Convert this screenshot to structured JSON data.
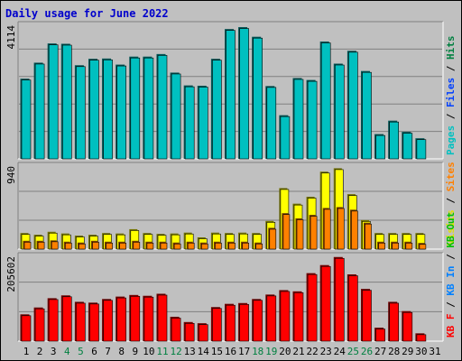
{
  "title": "Daily usage for June 2022",
  "chart_data": [
    {
      "type": "bar",
      "panel": "pages-files-hits",
      "ymax_label": "4114",
      "ymax": 4114,
      "legend": [
        {
          "name": "Pages",
          "color": "#00c0c0"
        },
        {
          "name": "Files",
          "color": "#0040ff"
        },
        {
          "name": "Hits",
          "color": "#008040"
        }
      ],
      "categories": [
        "1",
        "2",
        "3",
        "4",
        "5",
        "6",
        "7",
        "8",
        "9",
        "10",
        "11",
        "12",
        "13",
        "14",
        "15",
        "16",
        "17",
        "18",
        "19",
        "20",
        "21",
        "22",
        "23",
        "24",
        "25",
        "26",
        "27",
        "28",
        "29",
        "30",
        "31"
      ],
      "series": [
        {
          "name": "Hits",
          "color": "#00c0c0",
          "values": [
            2460,
            2960,
            3560,
            3550,
            2880,
            3080,
            3090,
            2900,
            3150,
            3150,
            3230,
            2650,
            2250,
            2240,
            3080,
            4010,
            4070,
            3770,
            2230,
            1320,
            2480,
            2420,
            3620,
            2930,
            3330,
            2700,
            730,
            1150,
            800,
            600,
            0
          ]
        }
      ]
    },
    {
      "type": "bar",
      "panel": "visits-sites",
      "ymax_label": "940",
      "ymax": 940,
      "legend": [
        {
          "name": "Visits",
          "color": "#e0e000"
        },
        {
          "name": "Sites",
          "color": "#ff8000"
        }
      ],
      "categories": [
        "1",
        "2",
        "3",
        "4",
        "5",
        "6",
        "7",
        "8",
        "9",
        "10",
        "11",
        "12",
        "13",
        "14",
        "15",
        "16",
        "17",
        "18",
        "19",
        "20",
        "21",
        "22",
        "23",
        "24",
        "25",
        "26",
        "27",
        "28",
        "29",
        "30",
        "31"
      ],
      "series": [
        {
          "name": "Visits",
          "color": "#ffff00",
          "values": [
            170,
            150,
            185,
            165,
            140,
            150,
            170,
            165,
            215,
            170,
            160,
            165,
            175,
            120,
            175,
            170,
            175,
            170,
            310,
            690,
            510,
            590,
            880,
            920,
            620,
            320,
            170,
            170,
            170,
            170,
            0
          ]
        },
        {
          "name": "Sites",
          "color": "#ff8000",
          "values": [
            80,
            80,
            85,
            70,
            60,
            80,
            70,
            70,
            80,
            70,
            70,
            60,
            70,
            60,
            70,
            70,
            70,
            60,
            230,
            400,
            340,
            380,
            460,
            470,
            440,
            290,
            70,
            70,
            70,
            55,
            0
          ]
        }
      ]
    },
    {
      "type": "bar",
      "panel": "kbytes",
      "ymax_label": "205602",
      "ymax": 205602,
      "legend": [
        {
          "name": "KB F",
          "color": "#ff0000"
        },
        {
          "name": "KB In",
          "color": "#0080ff"
        },
        {
          "name": "KB Out",
          "color": "#00c000"
        }
      ],
      "categories": [
        "1",
        "2",
        "3",
        "4",
        "5",
        "6",
        "7",
        "8",
        "9",
        "10",
        "11",
        "12",
        "13",
        "14",
        "15",
        "16",
        "17",
        "18",
        "19",
        "20",
        "21",
        "22",
        "23",
        "24",
        "25",
        "26",
        "27",
        "28",
        "29",
        "30",
        "31"
      ],
      "series": [
        {
          "name": "KB F",
          "color": "#ff0000",
          "values": [
            63000,
            80000,
            103000,
            110000,
            94000,
            92000,
            101000,
            107000,
            111000,
            109000,
            114000,
            57000,
            44000,
            41000,
            81000,
            89000,
            91000,
            101000,
            112000,
            123000,
            120000,
            165000,
            185000,
            205000,
            162000,
            126000,
            30000,
            94000,
            71000,
            16000,
            0
          ]
        }
      ]
    }
  ],
  "x_labels": [
    {
      "text": "1",
      "color": "#000000"
    },
    {
      "text": "2",
      "color": "#000000"
    },
    {
      "text": "3",
      "color": "#000000"
    },
    {
      "text": "4",
      "color": "#008040"
    },
    {
      "text": "5",
      "color": "#008040"
    },
    {
      "text": "6",
      "color": "#000000"
    },
    {
      "text": "7",
      "color": "#000000"
    },
    {
      "text": "8",
      "color": "#000000"
    },
    {
      "text": "9",
      "color": "#000000"
    },
    {
      "text": "10",
      "color": "#000000"
    },
    {
      "text": "11",
      "color": "#008040"
    },
    {
      "text": "12",
      "color": "#008040"
    },
    {
      "text": "13",
      "color": "#000000"
    },
    {
      "text": "14",
      "color": "#000000"
    },
    {
      "text": "15",
      "color": "#000000"
    },
    {
      "text": "16",
      "color": "#000000"
    },
    {
      "text": "17",
      "color": "#000000"
    },
    {
      "text": "18",
      "color": "#008040"
    },
    {
      "text": "19",
      "color": "#008040"
    },
    {
      "text": "20",
      "color": "#000000"
    },
    {
      "text": "21",
      "color": "#000000"
    },
    {
      "text": "22",
      "color": "#000000"
    },
    {
      "text": "23",
      "color": "#000000"
    },
    {
      "text": "24",
      "color": "#000000"
    },
    {
      "text": "25",
      "color": "#008040"
    },
    {
      "text": "26",
      "color": "#008040"
    },
    {
      "text": "27",
      "color": "#000000"
    },
    {
      "text": "28",
      "color": "#000000"
    },
    {
      "text": "29",
      "color": "#000000"
    },
    {
      "text": "30",
      "color": "#000000"
    },
    {
      "text": "31",
      "color": "#000000"
    }
  ],
  "separator": " / ",
  "legend_separator_color": "#000000"
}
